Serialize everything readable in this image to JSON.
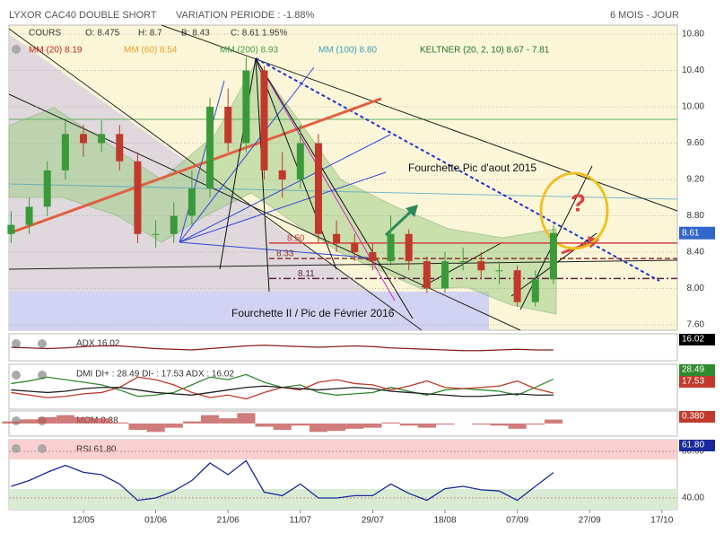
{
  "chart_data": {
    "type": "candlestick",
    "title": "LYXOR CAC40 DOUBLE SHORT",
    "subtitle": "VARIATION PERIODE : -1.88%",
    "period": "6 MOIS - JOUR",
    "quote": [
      "COURS",
      "O: 8.475",
      "H: 8.7",
      "B: 8.43",
      "C: 8.61 1.95%"
    ],
    "legend": [
      {
        "text": "MM (20) 8.19",
        "color": "#c0201a"
      },
      {
        "text": "MM (60) 8.54",
        "color": "#e8a020"
      },
      {
        "text": "MM (200) 8.93",
        "color": "#40a040"
      },
      {
        "text": "MM (100) 8.80",
        "color": "#40a0c0"
      },
      {
        "text": "KELTNER (20, 2, 10) 8.67 - 7.81",
        "color": "#207020"
      }
    ],
    "categories": [
      null,
      null,
      null,
      null,
      "12/05",
      null,
      null,
      null,
      "01/06",
      null,
      null,
      null,
      "21/06",
      null,
      null,
      null,
      "11/07",
      null,
      null,
      null,
      "29/07",
      null,
      null,
      null,
      "18/08",
      null,
      null,
      null,
      "07/09",
      null,
      null,
      null,
      "27/09",
      null,
      null,
      null,
      "17/10"
    ],
    "open": [
      8.6,
      8.7,
      8.9,
      9.3,
      9.7,
      9.6,
      9.7,
      9.4,
      8.6,
      8.6,
      8.8,
      9.1,
      10.0,
      9.6,
      10.4,
      9.3,
      9.2,
      9.6,
      8.6,
      8.5,
      8.4,
      8.3,
      8.6,
      8.3,
      8.0,
      8.3,
      8.3,
      8.2,
      8.2,
      7.85,
      8.1,
      null,
      null,
      null,
      null,
      null,
      null
    ],
    "high": [
      8.85,
      9.0,
      9.4,
      9.85,
      9.8,
      9.85,
      9.8,
      9.5,
      8.75,
      8.95,
      9.3,
      10.1,
      10.2,
      10.55,
      10.45,
      9.5,
      9.8,
      9.7,
      8.75,
      8.6,
      8.5,
      8.8,
      8.65,
      8.35,
      8.4,
      8.45,
      8.4,
      8.3,
      8.25,
      8.2,
      8.7,
      null,
      null,
      null,
      null,
      null,
      null
    ],
    "low": [
      8.5,
      8.6,
      8.8,
      9.2,
      9.45,
      9.5,
      9.3,
      8.5,
      8.45,
      8.5,
      8.7,
      9.0,
      9.5,
      9.5,
      9.2,
      9.0,
      9.1,
      8.5,
      8.4,
      8.3,
      8.2,
      8.25,
      8.2,
      7.95,
      7.95,
      8.2,
      8.1,
      8.05,
      7.8,
      7.8,
      8.05,
      null,
      null,
      null,
      null,
      null,
      null
    ],
    "close": [
      8.7,
      8.9,
      9.3,
      9.7,
      9.6,
      9.7,
      9.4,
      8.6,
      8.6,
      8.8,
      9.1,
      10.0,
      9.6,
      10.4,
      9.3,
      9.2,
      9.6,
      8.6,
      8.5,
      8.4,
      8.3,
      8.6,
      8.3,
      8.0,
      8.3,
      8.3,
      8.2,
      8.2,
      7.85,
      8.1,
      8.61,
      null,
      null,
      null,
      null,
      null,
      null
    ],
    "up_color": "#3a9a3a",
    "down_color": "#c0392b",
    "last_badge": "8.61",
    "ylim": [
      7.6,
      10.8
    ],
    "yticks": [
      {
        "value": 7.6,
        "label": "7.60"
      },
      {
        "value": 8.0,
        "label": "8.00"
      },
      {
        "value": 8.4,
        "label": "8.40"
      },
      {
        "value": 8.8,
        "label": "8.80"
      },
      {
        "value": 9.2,
        "label": "9.20"
      },
      {
        "value": 9.6,
        "label": "9.60"
      },
      {
        "value": 10.0,
        "label": "10.00"
      },
      {
        "value": 10.4,
        "label": "10.40"
      },
      {
        "value": 10.8,
        "label": "10.80"
      }
    ],
    "levels": [
      {
        "value": 8.5,
        "label": "8.50",
        "color": "#d04040"
      },
      {
        "value": 8.33,
        "label": "8.33",
        "color": "#903030"
      },
      {
        "value": 8.11,
        "label": "8.11",
        "color": "#602040"
      }
    ],
    "annotations": [
      "Fourchette Pic d'aout 2015",
      "Fourchette II / Pic de Février 2016",
      "?"
    ],
    "indicators": [
      {
        "title": "ADX 16.02",
        "ylim": [
          0,
          40
        ],
        "badges": [
          {
            "text": "16.02",
            "color": "#000000"
          }
        ],
        "series": [
          {
            "name": "ADX",
            "color": "#8b1a1a",
            "values": [
              20,
              19,
              18,
              19,
              21,
              22,
              22,
              20,
              18,
              17,
              16,
              18,
              20,
              22,
              23,
              22,
              21,
              20,
              21,
              22,
              21,
              19,
              18,
              17,
              16,
              15,
              15,
              16,
              17,
              16,
              16.02,
              null,
              null,
              null,
              null,
              null,
              null
            ]
          }
        ]
      },
      {
        "title": "DMI DI+ : 28.49 DI- : 17.53 ADX : 16.02",
        "ylim": [
          5,
          40
        ],
        "badges": [
          {
            "text": "28.49",
            "color": "#2e8b2e"
          },
          {
            "text": "17.53",
            "color": "#c0392b"
          }
        ],
        "series": [
          {
            "name": "DI+",
            "color": "#2e8b2e",
            "values": [
              25,
              27,
              30,
              28,
              26,
              24,
              20,
              15,
              16,
              18,
              24,
              30,
              28,
              32,
              26,
              22,
              24,
              18,
              16,
              17,
              18,
              22,
              19,
              16,
              20,
              21,
              20,
              19,
              16,
              22,
              28.49,
              null,
              null,
              null,
              null,
              null,
              null
            ]
          },
          {
            "name": "DI-",
            "color": "#c0392b",
            "values": [
              18,
              16,
              14,
              15,
              17,
              18,
              22,
              30,
              28,
              24,
              18,
              14,
              16,
              13,
              18,
              22,
              20,
              26,
              28,
              25,
              24,
              20,
              23,
              27,
              22,
              21,
              22,
              23,
              27,
              21,
              17.53,
              null,
              null,
              null,
              null,
              null,
              null
            ]
          },
          {
            "name": "ADX",
            "color": "#222222",
            "values": [
              20,
              19,
              18,
              19,
              21,
              22,
              22,
              20,
              18,
              17,
              16,
              18,
              20,
              22,
              23,
              22,
              21,
              20,
              21,
              22,
              21,
              19,
              18,
              17,
              16,
              15,
              15,
              16,
              17,
              16,
              16.02,
              null,
              null,
              null,
              null,
              null,
              null
            ]
          }
        ]
      },
      {
        "title": "MOM 0.38",
        "ylim": [
          -1.2,
          1.2
        ],
        "area": true,
        "badges": [
          {
            "text": "0.380",
            "color": "#c0392b"
          }
        ],
        "series": [
          {
            "name": "MOM",
            "color": "#c0504d",
            "values": [
              0.2,
              0.4,
              0.6,
              0.8,
              0.6,
              0.5,
              0.1,
              -0.6,
              -0.8,
              -0.4,
              0.2,
              0.8,
              0.5,
              1.0,
              -0.3,
              -0.6,
              -0.2,
              -0.8,
              -0.7,
              -0.5,
              -0.4,
              0.1,
              -0.2,
              -0.4,
              -0.1,
              0,
              -0.1,
              -0.2,
              -0.5,
              -0.1,
              0.38,
              null,
              null,
              null,
              null,
              null,
              null
            ]
          }
        ]
      },
      {
        "title": "RSI 61.80",
        "ylim": [
          30,
          90
        ],
        "yticks": [
          {
            "value": 80,
            "label": "80.00"
          },
          {
            "value": 40,
            "label": "40.00"
          }
        ],
        "badges": [
          {
            "text": "61.80",
            "color": "#1a2a9a"
          }
        ],
        "series": [
          {
            "name": "RSI",
            "color": "#1a2a9a",
            "values": [
              50,
              55,
              62,
              68,
              62,
              60,
              52,
              38,
              40,
              46,
              55,
              70,
              60,
              72,
              45,
              42,
              52,
              40,
              40,
              42,
              42,
              52,
              44,
              38,
              48,
              50,
              47,
              46,
              38,
              50,
              61.8,
              null,
              null,
              null,
              null,
              null,
              null
            ]
          }
        ]
      }
    ]
  }
}
